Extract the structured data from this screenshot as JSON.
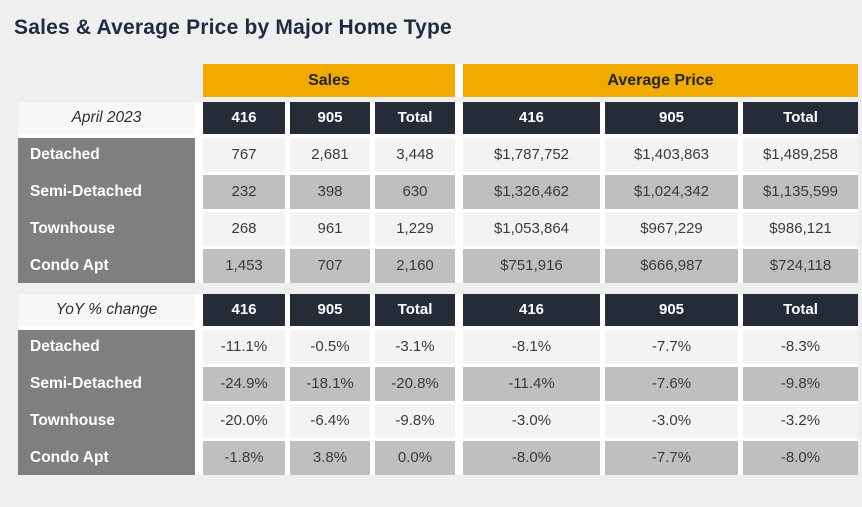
{
  "title": "Sales & Average Price by Major Home Type",
  "group_headers": {
    "sales": "Sales",
    "average_price": "Average Price"
  },
  "columns": {
    "c1": "416",
    "c2": "905",
    "c3": "Total"
  },
  "colors": {
    "accent_orange": "#F2A900",
    "header_navy": "#262B38",
    "label_gray": "#7F7F7F",
    "row_light": "#F3F3F3",
    "row_dark": "#BFBFBF",
    "background": "#EFEFEF"
  },
  "april": {
    "period_label": "April 2023",
    "rows": [
      {
        "label": "Detached",
        "sales": [
          "767",
          "2,681",
          "3,448"
        ],
        "avg": [
          "$1,787,752",
          "$1,403,863",
          "$1,489,258"
        ]
      },
      {
        "label": "Semi-Detached",
        "sales": [
          "232",
          "398",
          "630"
        ],
        "avg": [
          "$1,326,462",
          "$1,024,342",
          "$1,135,599"
        ]
      },
      {
        "label": "Townhouse",
        "sales": [
          "268",
          "961",
          "1,229"
        ],
        "avg": [
          "$1,053,864",
          "$967,229",
          "$986,121"
        ]
      },
      {
        "label": "Condo Apt",
        "sales": [
          "1,453",
          "707",
          "2,160"
        ],
        "avg": [
          "$751,916",
          "$666,987",
          "$724,118"
        ]
      }
    ]
  },
  "yoy": {
    "period_label": "YoY % change",
    "rows": [
      {
        "label": "Detached",
        "sales": [
          "-11.1%",
          "-0.5%",
          "-3.1%"
        ],
        "avg": [
          "-8.1%",
          "-7.7%",
          "-8.3%"
        ]
      },
      {
        "label": "Semi-Detached",
        "sales": [
          "-24.9%",
          "-18.1%",
          "-20.8%"
        ],
        "avg": [
          "-11.4%",
          "-7.6%",
          "-9.8%"
        ]
      },
      {
        "label": "Townhouse",
        "sales": [
          "-20.0%",
          "-6.4%",
          "-9.8%"
        ],
        "avg": [
          "-3.0%",
          "-3.0%",
          "-3.2%"
        ]
      },
      {
        "label": "Condo Apt",
        "sales": [
          "-1.8%",
          "3.8%",
          "0.0%"
        ],
        "avg": [
          "-8.0%",
          "-7.7%",
          "-8.0%"
        ]
      }
    ]
  },
  "chart_data": {
    "type": "table",
    "title": "Sales & Average Price by Major Home Type",
    "column_groups": [
      "Sales",
      "Average Price"
    ],
    "columns": [
      "416",
      "905",
      "Total"
    ],
    "sections": [
      {
        "period": "April 2023",
        "rows": [
          {
            "home_type": "Detached",
            "sales": {
              "416": 767,
              "905": 2681,
              "total": 3448
            },
            "average_price": {
              "416": 1787752,
              "905": 1403863,
              "total": 1489258
            }
          },
          {
            "home_type": "Semi-Detached",
            "sales": {
              "416": 232,
              "905": 398,
              "total": 630
            },
            "average_price": {
              "416": 1326462,
              "905": 1024342,
              "total": 1135599
            }
          },
          {
            "home_type": "Townhouse",
            "sales": {
              "416": 268,
              "905": 961,
              "total": 1229
            },
            "average_price": {
              "416": 1053864,
              "905": 967229,
              "total": 986121
            }
          },
          {
            "home_type": "Condo Apt",
            "sales": {
              "416": 1453,
              "905": 707,
              "total": 2160
            },
            "average_price": {
              "416": 751916,
              "905": 666987,
              "total": 724118
            }
          }
        ]
      },
      {
        "period": "YoY % change",
        "rows": [
          {
            "home_type": "Detached",
            "sales_pct": {
              "416": -11.1,
              "905": -0.5,
              "total": -3.1
            },
            "average_price_pct": {
              "416": -8.1,
              "905": -7.7,
              "total": -8.3
            }
          },
          {
            "home_type": "Semi-Detached",
            "sales_pct": {
              "416": -24.9,
              "905": -18.1,
              "total": -20.8
            },
            "average_price_pct": {
              "416": -11.4,
              "905": -7.6,
              "total": -9.8
            }
          },
          {
            "home_type": "Townhouse",
            "sales_pct": {
              "416": -20.0,
              "905": -6.4,
              "total": -9.8
            },
            "average_price_pct": {
              "416": -3.0,
              "905": -3.0,
              "total": -3.2
            }
          },
          {
            "home_type": "Condo Apt",
            "sales_pct": {
              "416": -1.8,
              "905": 3.8,
              "total": 0.0
            },
            "average_price_pct": {
              "416": -8.0,
              "905": -7.7,
              "total": -8.0
            }
          }
        ]
      }
    ]
  }
}
